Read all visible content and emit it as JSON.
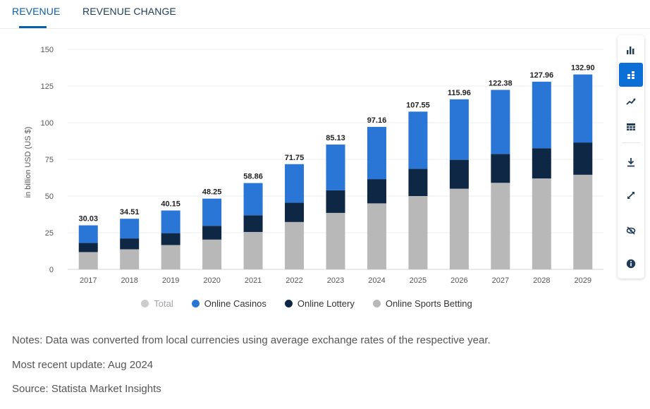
{
  "tabs": [
    {
      "label": "REVENUE",
      "active": true
    },
    {
      "label": "REVENUE CHANGE",
      "active": false
    }
  ],
  "toolbar": {
    "buttons": [
      "bar-chart-icon",
      "stacked-bar-icon",
      "trend-icon",
      "table-icon",
      "download-icon",
      "fullscreen-icon",
      "hide-icon",
      "info-icon"
    ],
    "active": "stacked-bar-icon",
    "accent": "#0b6fd6"
  },
  "chart_data": {
    "type": "bar",
    "stacked": true,
    "ylabel": "in billion USD (US $)",
    "ylim": [
      0,
      150
    ],
    "yticks": [
      0,
      25,
      50,
      75,
      100,
      125,
      150
    ],
    "categories": [
      "2017",
      "2018",
      "2019",
      "2020",
      "2021",
      "2022",
      "2023",
      "2024",
      "2025",
      "2026",
      "2027",
      "2028",
      "2029"
    ],
    "series": [
      {
        "name": "Online Sports Betting",
        "color": "#b8b8b8",
        "values": [
          11.8,
          13.7,
          16.6,
          20.3,
          25.5,
          32.3,
          38.5,
          45.0,
          50.0,
          55.0,
          59.0,
          62.0,
          64.5
        ]
      },
      {
        "name": "Online Lottery",
        "color": "#0e2745",
        "values": [
          6.2,
          7.4,
          8.1,
          9.4,
          11.4,
          13.2,
          15.4,
          16.5,
          18.6,
          19.7,
          19.7,
          20.6,
          22.0
        ]
      },
      {
        "name": "Online Casinos",
        "color": "#2a76d6",
        "values": [
          12.03,
          13.41,
          15.45,
          18.55,
          21.96,
          26.25,
          31.23,
          35.66,
          38.95,
          41.26,
          43.68,
          45.36,
          46.4
        ]
      }
    ],
    "totals": [
      "30.03",
      "34.51",
      "40.15",
      "48.25",
      "58.86",
      "71.75",
      "85.13",
      "97.16",
      "107.55",
      "115.96",
      "122.38",
      "127.96",
      "132.90"
    ],
    "legend": [
      {
        "name": "Total",
        "color": "#cccccc",
        "hidden": true
      },
      {
        "name": "Online Casinos",
        "color": "#2a76d6",
        "hidden": false
      },
      {
        "name": "Online Lottery",
        "color": "#0e2745",
        "hidden": false
      },
      {
        "name": "Online Sports Betting",
        "color": "#b8b8b8",
        "hidden": false
      }
    ],
    "legend_placement": "bottom",
    "grid": true
  },
  "notes": {
    "note": "Notes: Data was converted from local currencies using average exchange rates of the respective year.",
    "update": "Most recent update: Aug 2024",
    "source": "Source: Statista Market Insights"
  }
}
